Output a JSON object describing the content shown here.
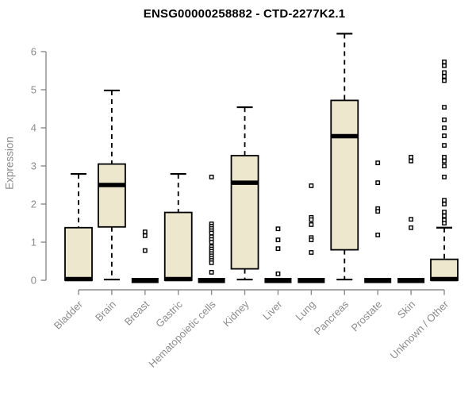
{
  "page": {
    "background": "#FFFFFF"
  },
  "chart_data": {
    "type": "boxplot",
    "title": "ENSG00000258882 - CTD-2277K2.1",
    "ylabel": "Expression",
    "xlabel": "",
    "ylim": [
      0,
      6.6
    ],
    "yticks": [
      0,
      1,
      2,
      3,
      4,
      5,
      6
    ],
    "grid": false,
    "legend": "none",
    "categories": [
      "Bladder",
      "Brain",
      "Breast",
      "Gastric",
      "Hematopoietic cells",
      "Kidney",
      "Liver",
      "Lung",
      "Pancreas",
      "Prostate",
      "Skin",
      "Unknown / Other"
    ],
    "boxes": [
      {
        "category": "Bladder",
        "q1": 0,
        "median": 0.03,
        "q3": 1.38,
        "whisker_low": 0,
        "whisker_high": 2.79,
        "outliers": []
      },
      {
        "category": "Brain",
        "q1": 1.4,
        "median": 2.5,
        "q3": 3.05,
        "whisker_low": 0.02,
        "whisker_high": 4.98,
        "outliers": []
      },
      {
        "category": "Breast",
        "q1": 0,
        "median": 0,
        "q3": 0,
        "whisker_low": 0,
        "whisker_high": 0,
        "outliers": [
          1.27,
          1.17,
          0.78
        ]
      },
      {
        "category": "Gastric",
        "q1": 0,
        "median": 0.03,
        "q3": 1.78,
        "whisker_low": 0,
        "whisker_high": 2.79,
        "outliers": []
      },
      {
        "category": "Hematopoietic cells",
        "q1": 0,
        "median": 0,
        "q3": 0,
        "whisker_low": 0,
        "whisker_high": 0,
        "outliers": [
          2.71,
          1.48,
          1.42,
          1.36,
          1.3,
          1.24,
          1.14,
          1.07,
          1.0,
          0.88,
          0.82,
          0.76,
          0.7,
          0.64,
          0.58,
          0.52,
          0.46,
          0.21
        ]
      },
      {
        "category": "Kidney",
        "q1": 0.3,
        "median": 2.56,
        "q3": 3.27,
        "whisker_low": 0.02,
        "whisker_high": 4.54,
        "outliers": []
      },
      {
        "category": "Liver",
        "q1": 0,
        "median": 0,
        "q3": 0,
        "whisker_low": 0,
        "whisker_high": 0,
        "outliers": [
          1.35,
          1.06,
          0.83,
          0.17
        ]
      },
      {
        "category": "Lung",
        "q1": 0,
        "median": 0,
        "q3": 0,
        "whisker_low": 0,
        "whisker_high": 0,
        "outliers": [
          2.48,
          1.65,
          1.59,
          1.46,
          1.12,
          1.06,
          0.73
        ]
      },
      {
        "category": "Pancreas",
        "q1": 0.8,
        "median": 3.78,
        "q3": 4.72,
        "whisker_low": 0.02,
        "whisker_high": 6.47,
        "outliers": []
      },
      {
        "category": "Prostate",
        "q1": 0,
        "median": 0,
        "q3": 0,
        "whisker_low": 0,
        "whisker_high": 0,
        "outliers": [
          3.08,
          2.56,
          1.88,
          1.81,
          1.19
        ]
      },
      {
        "category": "Skin",
        "q1": 0,
        "median": 0,
        "q3": 0,
        "whisker_low": 0,
        "whisker_high": 0,
        "outliers": [
          3.23,
          3.13,
          1.6,
          1.38
        ]
      },
      {
        "category": "Unknown / Other",
        "q1": 0,
        "median": 0.03,
        "q3": 0.55,
        "whisker_low": 0,
        "whisker_high": 1.38,
        "outliers": [
          5.73,
          5.63,
          5.45,
          5.35,
          5.24,
          4.54,
          4.21,
          4.0,
          3.79,
          3.54,
          3.23,
          3.13,
          3.0,
          2.71,
          2.1,
          2.0,
          1.79,
          1.69,
          1.58,
          1.5
        ]
      }
    ],
    "colors": {
      "box_fill": "#ECE7CD",
      "box_border": "#000000",
      "median": "#000000",
      "whisker": "#000000",
      "outlier": "#000000",
      "axis": "#8C8C8C",
      "axis_text": "#8C8C8C",
      "title": "#000000"
    }
  }
}
